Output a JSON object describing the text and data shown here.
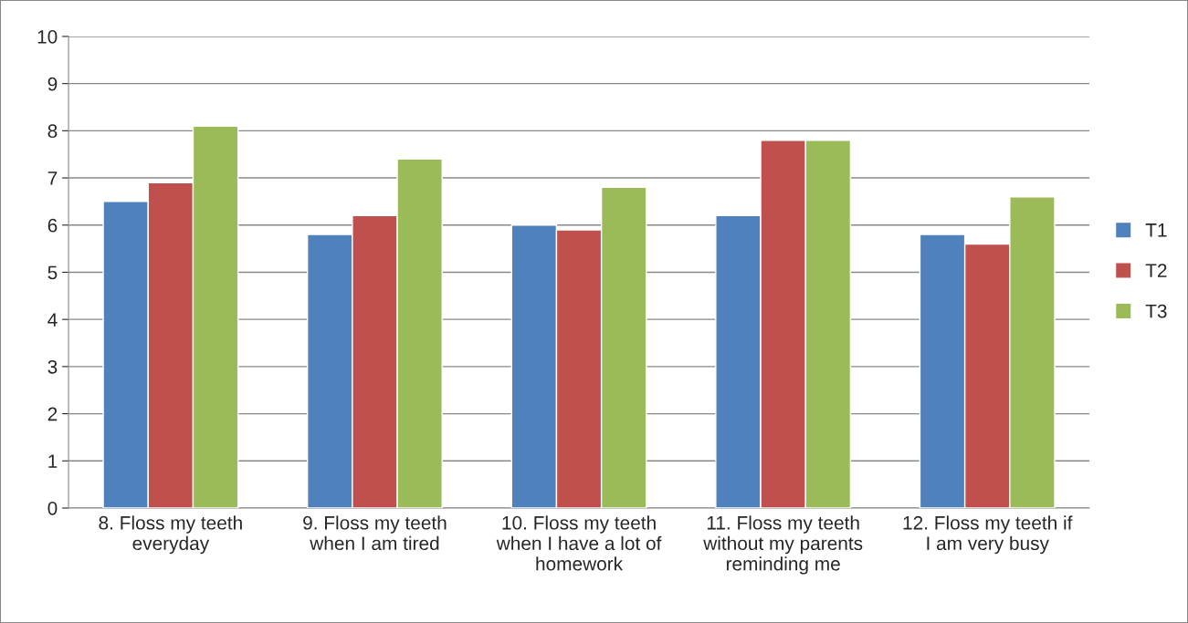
{
  "chart_data": {
    "type": "bar",
    "categories": [
      "8. Floss my teeth\neveryday",
      "9. Floss my teeth\nwhen I am tired",
      "10. Floss my teeth\nwhen I have a lot of\nhomework",
      "11. Floss my teeth\nwithout my parents\nreminding me",
      "12. Floss my teeth if\nI am very busy"
    ],
    "series": [
      {
        "name": "T1",
        "color": "#4f81bd",
        "values": [
          6.5,
          5.8,
          6.0,
          6.2,
          5.8
        ]
      },
      {
        "name": "T2",
        "color": "#c0504d",
        "values": [
          6.9,
          6.2,
          5.9,
          7.8,
          5.6
        ]
      },
      {
        "name": "T3",
        "color": "#9bbb59",
        "values": [
          8.1,
          7.4,
          6.8,
          7.8,
          6.6
        ]
      }
    ],
    "ylim": [
      0,
      10
    ],
    "yticks": [
      0,
      1,
      2,
      3,
      4,
      5,
      6,
      7,
      8,
      9,
      10
    ],
    "grid": "y",
    "legend": "right"
  }
}
